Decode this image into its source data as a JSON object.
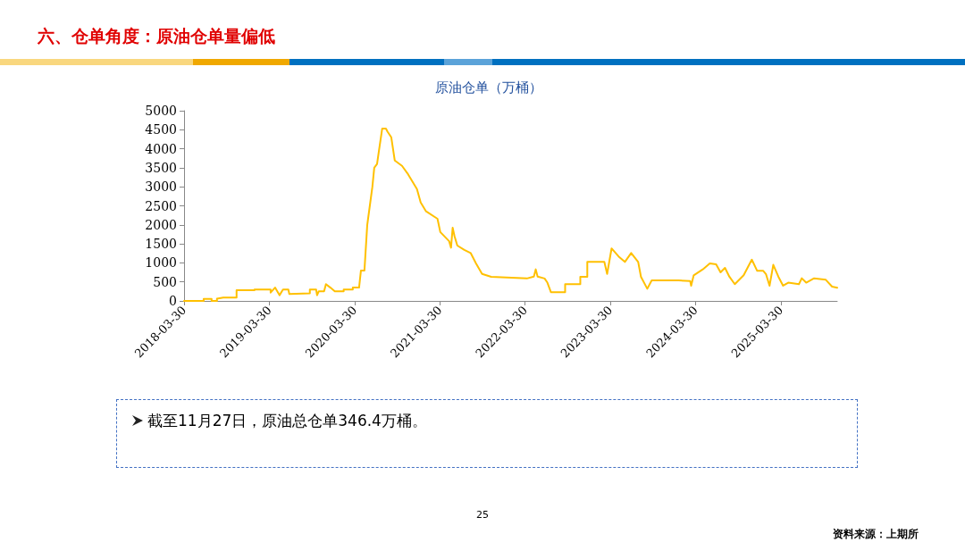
{
  "chart_data": {
    "type": "line",
    "title": "六、仓单角度：原油仓单量偏低",
    "subtitle": "原油仓单（万桶）",
    "annotations": [
      "截至11月27日，原油总仓单346.4万桶。",
      "25",
      "资料来源：上期所"
    ],
    "x": [
      "2018-03-30",
      "2018-06-22",
      "2018-06-22",
      "2018-07-26",
      "2018-07-26",
      "2018-08-18",
      "2018-08-18",
      "2018-09-14",
      "2018-11-10",
      "2018-11-10",
      "2019-01-26",
      "2019-01-26",
      "2019-04-05",
      "2019-04-05",
      "2019-04-24",
      "2019-05-13",
      "2019-05-28",
      "2019-06-20",
      "2019-06-24",
      "2019-09-20",
      "2019-09-20",
      "2019-10-17",
      "2019-10-21",
      "2019-10-28",
      "2019-11-20",
      "2019-11-28",
      "2019-12-17",
      "2020-01-05",
      "2020-02-12",
      "2020-02-12",
      "2020-03-22",
      "2020-03-22",
      "2020-04-18",
      "2020-04-26",
      "2020-05-11",
      "2020-05-23",
      "2020-06-03",
      "2020-06-14",
      "2020-06-22",
      "2020-07-04",
      "2020-07-11",
      "2020-07-26",
      "2020-08-11",
      "2020-08-18",
      "2020-09-03",
      "2020-09-18",
      "2020-10-19",
      "2020-11-14",
      "2020-12-22",
      "2021-01-07",
      "2021-01-30",
      "2021-03-20",
      "2021-04-01",
      "2021-05-09",
      "2021-05-17",
      "2021-05-24",
      "2021-06-01",
      "2021-06-13",
      "2021-07-13",
      "2021-08-09",
      "2021-09-01",
      "2021-09-27",
      "2021-11-05",
      "2022-04-07",
      "2022-05-07",
      "2022-05-15",
      "2022-05-23",
      "2022-06-22",
      "2022-07-04",
      "2022-07-19",
      "2022-09-18",
      "2022-09-18",
      "2022-11-22",
      "2022-11-22",
      "2022-12-22",
      "2022-12-22",
      "2023-03-05",
      "2023-03-17",
      "2023-04-05",
      "2023-05-05",
      "2023-06-01",
      "2023-06-28",
      "2023-07-28",
      "2023-08-09",
      "2023-09-05",
      "2023-09-24",
      "2024-01-17",
      "2024-03-07",
      "2024-03-11",
      "2024-03-22",
      "2024-04-30",
      "2024-05-30",
      "2024-06-26",
      "2024-07-15",
      "2024-08-03",
      "2024-08-22",
      "2024-09-14",
      "2024-10-22",
      "2024-11-26",
      "2024-12-19",
      "2025-01-14",
      "2025-01-26",
      "2025-02-10",
      "2025-02-26",
      "2025-03-20",
      "2025-04-09",
      "2025-05-01",
      "2025-06-16",
      "2025-06-28",
      "2025-07-17",
      "2025-08-20",
      "2025-10-09",
      "2025-11-05",
      "2025-11-27"
    ],
    "series": [
      {
        "color": "#ffc000",
        "values": [
          0,
          0,
          55,
          55,
          0,
          0,
          60,
          90,
          90,
          280,
          280,
          300,
          300,
          220,
          350,
          150,
          300,
          300,
          180,
          200,
          300,
          300,
          150,
          250,
          250,
          440,
          350,
          250,
          250,
          300,
          300,
          350,
          350,
          800,
          800,
          2000,
          2500,
          3000,
          3500,
          3600,
          3900,
          4530,
          4530,
          4450,
          4300,
          3690,
          3550,
          3330,
          2940,
          2590,
          2355,
          2160,
          1810,
          1570,
          1400,
          1925,
          1700,
          1455,
          1340,
          1260,
          985,
          710,
          635,
          590,
          640,
          830,
          640,
          590,
          480,
          230,
          230,
          440,
          440,
          635,
          635,
          1025,
          1025,
          710,
          1380,
          1170,
          1025,
          1260,
          1025,
          635,
          320,
          540,
          540,
          520,
          400,
          673,
          830,
          985,
          960,
          750,
          870,
          635,
          440,
          673,
          1085,
          790,
          790,
          700,
          400,
          949,
          635,
          400,
          480,
          440,
          595,
          480,
          595,
          555,
          375,
          346
        ]
      }
    ],
    "xlim": [
      "2018-03-30",
      "2025-11-27"
    ],
    "xticks": [
      "2018-03-30",
      "2019-03-30",
      "2020-03-30",
      "2021-03-30",
      "2022-03-30",
      "2023-03-30",
      "2024-03-30",
      "2025-03-30"
    ],
    "ylim": [
      0,
      5000
    ],
    "yticks": [
      0,
      500,
      1000,
      1500,
      2000,
      2500,
      3000,
      3500,
      4000,
      4500,
      5000
    ],
    "grid": false,
    "marker": "none",
    "line_style": "solid"
  }
}
